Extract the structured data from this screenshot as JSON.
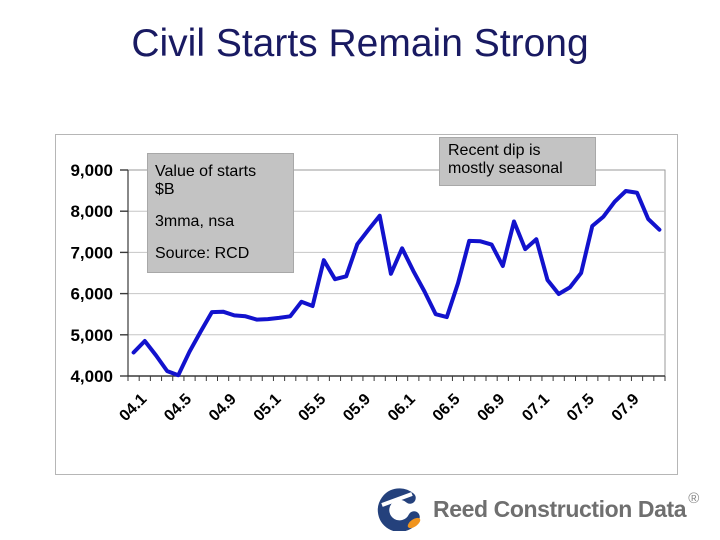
{
  "slide": {
    "title": "Civil Starts Remain Strong"
  },
  "chart_data": {
    "type": "line",
    "title": "",
    "xlabel": "",
    "ylabel": "",
    "categories": [
      "04.1",
      "04.2",
      "04.3",
      "04.4",
      "04.5",
      "04.6",
      "04.7",
      "04.8",
      "04.9",
      "04.10",
      "04.11",
      "04.12",
      "05.1",
      "05.2",
      "05.3",
      "05.4",
      "05.5",
      "05.6",
      "05.7",
      "05.8",
      "05.9",
      "05.10",
      "05.11",
      "05.12",
      "06.1",
      "06.2",
      "06.3",
      "06.4",
      "06.5",
      "06.6",
      "06.7",
      "06.8",
      "06.9",
      "06.10",
      "06.11",
      "06.12",
      "07.1",
      "07.2",
      "07.3",
      "07.4",
      "07.5",
      "07.6",
      "07.7",
      "07.8",
      "07.9",
      "07.10",
      "07.11",
      "07.12"
    ],
    "values": [
      4570,
      4850,
      4500,
      4120,
      4020,
      4590,
      5080,
      5550,
      5560,
      5470,
      5450,
      5370,
      5380,
      5410,
      5450,
      5800,
      5700,
      6810,
      6350,
      6420,
      7200,
      7550,
      7890,
      6480,
      7100,
      6550,
      6050,
      5500,
      5430,
      6250,
      7280,
      7270,
      7190,
      6670,
      7750,
      7080,
      7320,
      6330,
      5990,
      6150,
      6500,
      7640,
      7870,
      8230,
      8490,
      8450,
      7810,
      7550
    ],
    "x_tick_labels": [
      "04.1",
      "04.5",
      "04.9",
      "05.1",
      "05.5",
      "05.9",
      "06.1",
      "06.5",
      "06.9",
      "07.1",
      "07.5",
      "07.9"
    ],
    "x_tick_every": 4,
    "y_ticks": [
      4000,
      5000,
      6000,
      7000,
      8000,
      9000
    ],
    "y_tick_labels": [
      "4,000",
      "5,000",
      "6,000",
      "7,000",
      "8,000",
      "9,000"
    ],
    "ylim": [
      4000,
      9000
    ],
    "grid": "horizontal-only",
    "legend": "none",
    "line_color": "#1212cd",
    "annotations": [
      {
        "id": "series-label",
        "lines": [
          "Value of starts",
          "$B",
          "3mma, nsa",
          "Source: RCD"
        ]
      },
      {
        "id": "dip-note",
        "lines": [
          "Recent dip is",
          "mostly seasonal"
        ]
      }
    ]
  },
  "logo": {
    "brand": "Reed Construction Data",
    "registered_mark": "®"
  },
  "colors": {
    "title_navy": "#191a62",
    "line_blue": "#1212cd",
    "box_gray": "#c3c3c3",
    "logo_gray": "#6f6f6f",
    "logo_blue": "#24417c",
    "logo_orange": "#f0941e"
  }
}
